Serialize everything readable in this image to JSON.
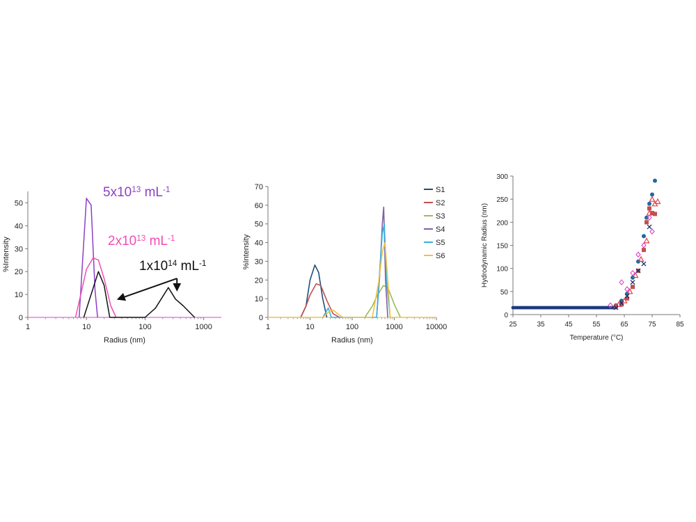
{
  "chart_data": [
    {
      "type": "line",
      "xlabel": "Radius (nm)",
      "ylabel": "%Intensity",
      "xscale": "log",
      "xlim": [
        1,
        2000
      ],
      "ylim": [
        0,
        55
      ],
      "xticks": [
        1,
        10,
        100,
        1000
      ],
      "yticks": [
        0,
        10,
        20,
        30,
        40,
        50
      ],
      "grid": false,
      "legend": "none",
      "series": [
        {
          "color": "#8b3fc7",
          "x": [
            7.5,
            10,
            12,
            14,
            15.5
          ],
          "y": [
            0,
            52,
            49,
            12,
            0
          ]
        },
        {
          "color": "#ee4fb4",
          "x": [
            6.5,
            8,
            10,
            13,
            16,
            20,
            26,
            32
          ],
          "y": [
            0,
            10,
            21,
            26,
            25,
            17,
            5,
            0
          ]
        },
        {
          "color": "#111111",
          "x": [
            9,
            12,
            16,
            20,
            25,
            100,
            150,
            250,
            330,
            450,
            700
          ],
          "y": [
            0,
            10,
            20,
            14,
            0,
            0,
            4,
            13,
            8,
            5,
            0
          ]
        }
      ],
      "annotations": [
        {
          "base": "5x10",
          "exp": "13",
          "unit": " mL",
          "unit_exp": "-1",
          "color": "#8b3fc7"
        },
        {
          "base": "2x10",
          "exp": "13",
          "unit": " mL",
          "unit_exp": "-1",
          "color": "#ee4fb4"
        },
        {
          "base": "1x10",
          "exp": "14",
          "unit": " mL",
          "unit_exp": "-1",
          "color": "#111111"
        }
      ],
      "arrows": [
        {
          "from": [
            350,
            17
          ],
          "to": [
            35,
            8
          ]
        },
        {
          "from": [
            350,
            17
          ],
          "to": [
            350,
            12
          ]
        }
      ]
    },
    {
      "type": "line",
      "xlabel": "Radius (nm)",
      "ylabel": "%Intensity",
      "xscale": "log",
      "xlim": [
        1,
        10000
      ],
      "ylim": [
        0,
        70
      ],
      "xticks": [
        1,
        10,
        100,
        1000,
        10000
      ],
      "yticks": [
        0,
        10,
        20,
        30,
        40,
        50,
        60,
        70
      ],
      "grid": false,
      "legend": "right",
      "series": [
        {
          "name": "S1",
          "color": "#1f4e79",
          "x": [
            6,
            8,
            10,
            13,
            16,
            20,
            25
          ],
          "y": [
            0,
            6,
            20,
            28,
            24,
            10,
            0
          ]
        },
        {
          "name": "S2",
          "color": "#c0504d",
          "x": [
            6,
            8,
            10,
            14,
            18,
            25,
            35,
            50
          ],
          "y": [
            0,
            6,
            12,
            18,
            17,
            9,
            2,
            0
          ]
        },
        {
          "name": "S3",
          "color": "#9bbb59",
          "x": [
            200,
            300,
            400,
            550,
            700,
            1000,
            1400
          ],
          "y": [
            0,
            6,
            12,
            17,
            16,
            7,
            0
          ]
        },
        {
          "name": "S4",
          "color": "#7f5fa8",
          "x": [
            380,
            450,
            520,
            560,
            620,
            700
          ],
          "y": [
            0,
            22,
            50,
            59,
            20,
            0
          ]
        },
        {
          "name": "S5",
          "color": "#35b0e0",
          "x": [
            20,
            24,
            27,
            32,
            380,
            450,
            520,
            580,
            650,
            800
          ],
          "y": [
            0,
            3,
            5,
            0,
            0,
            25,
            45,
            50,
            20,
            0
          ]
        },
        {
          "name": "S6",
          "color": "#f1c040",
          "x": [
            1,
            20,
            28,
            35,
            45,
            60,
            300,
            420,
            520,
            600,
            700,
            800,
            10000
          ],
          "y": [
            0,
            0,
            3,
            4,
            2,
            0,
            0,
            18,
            35,
            40,
            20,
            0,
            0
          ]
        }
      ]
    },
    {
      "type": "scatter",
      "xlabel": "Temperature (°C)",
      "ylabel": "Hydrodynamic Radius (nm)",
      "xlim": [
        25,
        85
      ],
      "ylim": [
        0,
        300
      ],
      "xticks": [
        25,
        35,
        45,
        55,
        65,
        75,
        85
      ],
      "yticks": [
        0,
        50,
        100,
        150,
        200,
        250,
        300
      ],
      "grid": false,
      "legend": "none",
      "series": [
        {
          "marker": "circle",
          "color": "#1f6aa0",
          "x": [
            62,
            64,
            66,
            68,
            70,
            72,
            73,
            74,
            75,
            76
          ],
          "y": [
            20,
            30,
            45,
            80,
            115,
            170,
            210,
            240,
            260,
            290
          ]
        },
        {
          "marker": "square",
          "color": "#c0504d",
          "x": [
            62,
            64,
            66,
            68,
            70,
            72,
            73,
            74,
            75,
            76
          ],
          "y": [
            18,
            22,
            35,
            60,
            95,
            140,
            200,
            230,
            220,
            218
          ]
        },
        {
          "marker": "triangle",
          "color": "#e0404a",
          "x": [
            63,
            65,
            67,
            69,
            71,
            73,
            74,
            75,
            76,
            77
          ],
          "y": [
            22,
            30,
            50,
            85,
            120,
            160,
            220,
            250,
            240,
            245
          ]
        },
        {
          "marker": "diamond",
          "color": "#e040c8",
          "x": [
            60,
            64,
            66,
            68,
            70,
            72,
            74,
            75
          ],
          "y": [
            20,
            70,
            55,
            90,
            130,
            150,
            210,
            180
          ]
        },
        {
          "marker": "x",
          "color": "#1a2a6c",
          "x": [
            62,
            64,
            66,
            68,
            70,
            72,
            74
          ],
          "y": [
            15,
            25,
            40,
            70,
            95,
            110,
            190
          ]
        }
      ]
    }
  ]
}
